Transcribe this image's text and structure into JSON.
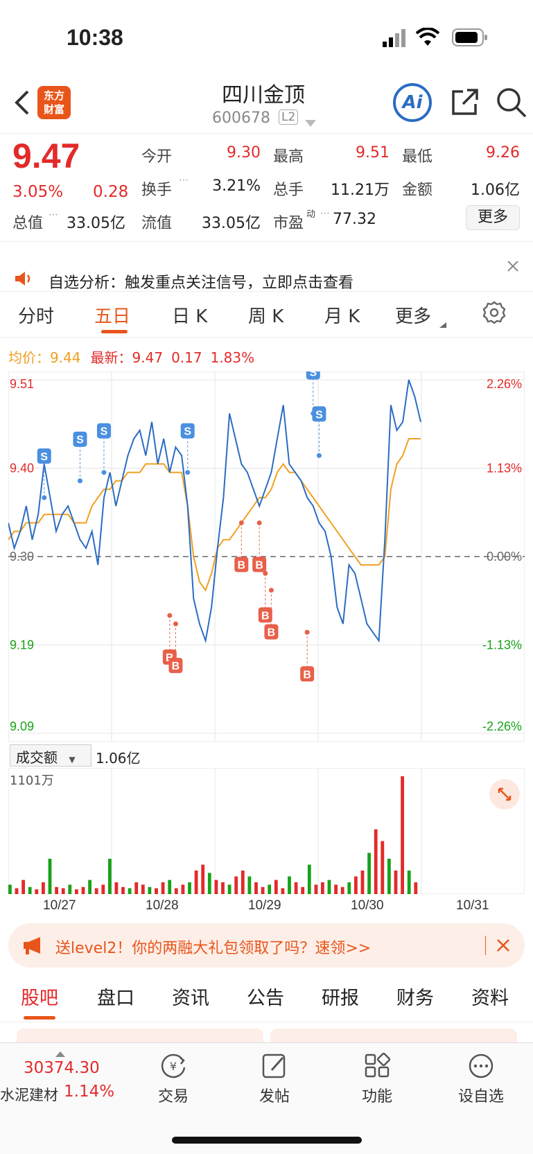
{
  "status": {
    "time": "10:38"
  },
  "header": {
    "stock_name": "四川金顶",
    "stock_code": "600678",
    "level_badge": "L2",
    "logo_line1": "东方",
    "logo_line2": "财富",
    "ai_label": "Ai"
  },
  "quote": {
    "price": "9.47",
    "change_pct": "3.05%",
    "change_abs": "0.28",
    "open_label": "今开",
    "open_value": "9.30",
    "high_label": "最高",
    "high_value": "9.51",
    "low_label": "最低",
    "low_value": "9.26",
    "turnover_label": "换手",
    "turnover_value": "3.21%",
    "volume_label": "总手",
    "volume_value": "11.21万",
    "amount_label": "金额",
    "amount_value": "1.06亿",
    "mktcap_label": "总值",
    "mktcap_value": "33.05亿",
    "float_label": "流值",
    "float_value": "33.05亿",
    "pe_label": "市盈",
    "pe_sup": "动",
    "pe_value": "77.32",
    "more_label": "更多"
  },
  "notice": {
    "text": "自选分析：触发重点关注信号，立即点击查看"
  },
  "chart_tabs": [
    "分时",
    "五日",
    "日 K",
    "周 K",
    "月 K",
    "更多"
  ],
  "chart_info": {
    "avg_label": "均价：",
    "avg_value": "9.44",
    "latest_label": "最新：",
    "latest_value": "9.47",
    "latest_change": "0.17",
    "latest_pct": "1.83%"
  },
  "chart_data": {
    "type": "line",
    "y_ticks_left": [
      "9.51",
      "9.40",
      "9.30",
      "9.19",
      "9.09"
    ],
    "y_ticks_right": [
      "2.26%",
      "1.13%",
      "0.00%",
      "-1.13%",
      "-2.26%"
    ],
    "ylim": [
      9.09,
      9.51
    ],
    "x_labels": [
      "10/27",
      "10/28",
      "10/29",
      "10/30",
      "10/31"
    ],
    "series": [
      {
        "name": "price",
        "values": [
          9.34,
          9.31,
          9.33,
          9.36,
          9.32,
          9.35,
          9.41,
          9.37,
          9.33,
          9.35,
          9.36,
          9.34,
          9.32,
          9.31,
          9.33,
          9.29,
          9.37,
          9.4,
          9.36,
          9.39,
          9.42,
          9.44,
          9.45,
          9.42,
          9.46,
          9.41,
          9.44,
          9.4,
          9.43,
          9.42,
          9.36,
          9.25,
          9.22,
          9.2,
          9.24,
          9.31,
          9.37,
          9.47,
          9.44,
          9.41,
          9.4,
          9.38,
          9.36,
          9.38,
          9.4,
          9.44,
          9.48,
          9.41,
          9.4,
          9.39,
          9.37,
          9.36,
          9.34,
          9.33,
          9.3,
          9.24,
          9.22,
          9.29,
          9.28,
          9.25,
          9.22,
          9.21,
          9.2,
          9.32,
          9.48,
          9.45,
          9.46,
          9.51,
          9.49,
          9.46
        ]
      },
      {
        "name": "avg",
        "values": [
          9.32,
          9.33,
          9.33,
          9.34,
          9.34,
          9.34,
          9.35,
          9.35,
          9.35,
          9.35,
          9.35,
          9.34,
          9.34,
          9.34,
          9.36,
          9.37,
          9.38,
          9.38,
          9.39,
          9.39,
          9.4,
          9.4,
          9.4,
          9.41,
          9.41,
          9.41,
          9.41,
          9.4,
          9.4,
          9.4,
          9.36,
          9.3,
          9.27,
          9.26,
          9.28,
          9.31,
          9.32,
          9.32,
          9.33,
          9.34,
          9.35,
          9.36,
          9.37,
          9.37,
          9.38,
          9.4,
          9.41,
          9.4,
          9.4,
          9.39,
          9.38,
          9.37,
          9.36,
          9.35,
          9.34,
          9.33,
          9.32,
          9.31,
          9.3,
          9.29,
          9.29,
          9.29,
          9.29,
          9.3,
          9.38,
          9.41,
          9.42,
          9.44,
          9.44,
          9.44
        ]
      }
    ],
    "markers": [
      {
        "label": "S",
        "type": "sell",
        "x": 6,
        "y": 9.37
      },
      {
        "label": "S",
        "type": "sell",
        "x": 12,
        "y": 9.39
      },
      {
        "label": "S",
        "type": "sell",
        "x": 16,
        "y": 9.4
      },
      {
        "label": "B",
        "type": "buy",
        "x": 27,
        "y": 9.23
      },
      {
        "label": "B",
        "type": "buy",
        "x": 28,
        "y": 9.22
      },
      {
        "label": "S",
        "type": "sell",
        "x": 30,
        "y": 9.4
      },
      {
        "label": "B",
        "type": "buy",
        "x": 39,
        "y": 9.34
      },
      {
        "label": "B",
        "type": "buy",
        "x": 42,
        "y": 9.34
      },
      {
        "label": "B",
        "type": "buy",
        "x": 43,
        "y": 9.28
      },
      {
        "label": "B",
        "type": "buy",
        "x": 44,
        "y": 9.26
      },
      {
        "label": "B",
        "type": "buy",
        "x": 50,
        "y": 9.21
      },
      {
        "label": "S",
        "type": "sell",
        "x": 51,
        "y": 9.47
      },
      {
        "label": "S",
        "type": "sell",
        "x": 52,
        "y": 9.42
      }
    ]
  },
  "volume": {
    "selector_label": "成交额",
    "value": "1.06亿",
    "max_label": "1101万",
    "bars": [
      0.08,
      0.05,
      0.12,
      0.06,
      0.04,
      0.1,
      0.3,
      0.06,
      0.05,
      0.08,
      0.04,
      0.06,
      0.12,
      0.05,
      0.08,
      0.3,
      0.1,
      0.06,
      0.05,
      0.1,
      0.08,
      0.06,
      0.05,
      0.1,
      0.12,
      0.05,
      0.08,
      0.1,
      0.2,
      0.25,
      0.18,
      0.12,
      0.1,
      0.08,
      0.15,
      0.2,
      0.15,
      0.1,
      0.06,
      0.08,
      0.12,
      0.05,
      0.15,
      0.1,
      0.06,
      0.25,
      0.08,
      0.1,
      0.12,
      0.08,
      0.06,
      0.1,
      0.15,
      0.2,
      0.35,
      0.55,
      0.45,
      0.3,
      0.2,
      1.0,
      0.2,
      0.1
    ],
    "bar_colors": [
      "red",
      "green"
    ]
  },
  "promo": {
    "text": "送level2！你的两融大礼包领取了吗？速领>>"
  },
  "section_tabs": [
    "股吧",
    "盘口",
    "资讯",
    "公告",
    "研报",
    "财务",
    "资料"
  ],
  "bottom_nav": {
    "index_value": "30374.30",
    "index_name": "水泥建材",
    "index_pct": "1.14%",
    "items": [
      "交易",
      "发帖",
      "功能",
      "设自选"
    ]
  },
  "colors": {
    "accent": "#e8551a",
    "up": "#e32a2a",
    "down": "#18a218",
    "line": "#2a6cc2",
    "avg": "#f0a020"
  }
}
